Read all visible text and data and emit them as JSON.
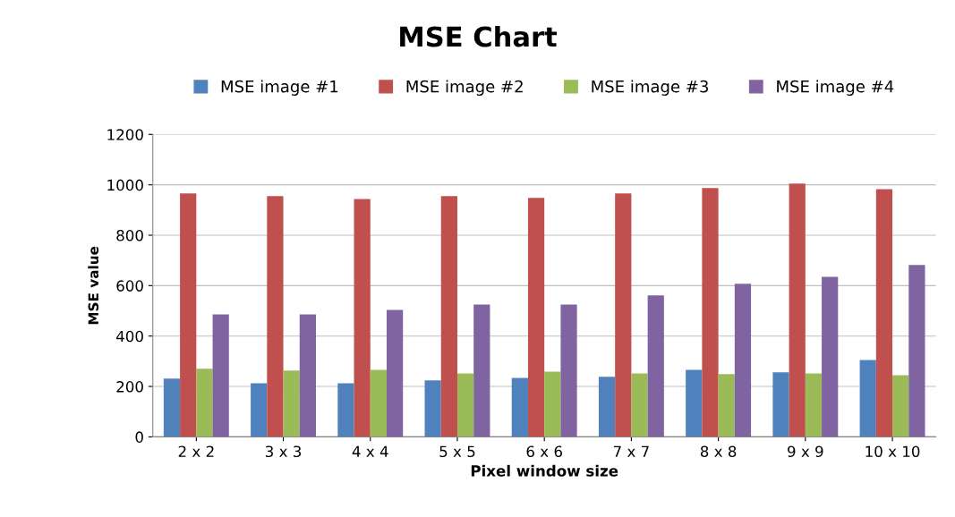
{
  "chart_data": {
    "type": "bar",
    "title": "MSE Chart",
    "xlabel": "Pixel window size",
    "ylabel": "MSE value",
    "categories": [
      "2 x 2",
      "3 x 3",
      "4 x 4",
      "5 x 5",
      "6 x 6",
      "7 x 7",
      "8 x 8",
      "9 x 9",
      "10 x 10"
    ],
    "series": [
      {
        "name": "MSE image #1",
        "color": "#4f81bd",
        "values": [
          231,
          213,
          213,
          224,
          234,
          238,
          266,
          256,
          305
        ]
      },
      {
        "name": "MSE image #2",
        "color": "#c0504d",
        "values": [
          966,
          955,
          944,
          955,
          948,
          966,
          987,
          1005,
          983
        ]
      },
      {
        "name": "MSE image #3",
        "color": "#9bbb59",
        "values": [
          270,
          263,
          266,
          252,
          259,
          252,
          249,
          252,
          245
        ]
      },
      {
        "name": "MSE image #4",
        "color": "#8064a2",
        "values": [
          486,
          486,
          504,
          525,
          525,
          561,
          607,
          635,
          682
        ]
      }
    ],
    "ylim": [
      0,
      1200
    ],
    "yticks": [
      0,
      200,
      400,
      600,
      800,
      1000,
      1200
    ],
    "grid": "y",
    "legend": "top"
  }
}
